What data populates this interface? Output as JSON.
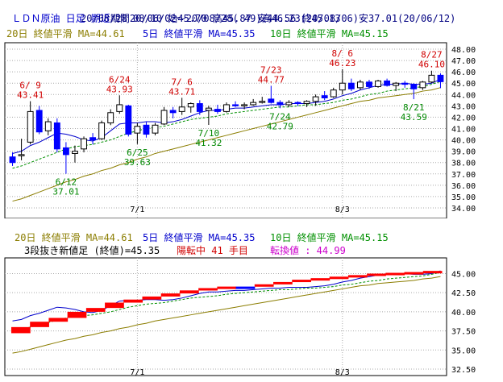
{
  "header": {
    "line1_title": "ＬＤＮ原油 日足 期近",
    "line1_period": "期間20/06/02～20/08/28( 49)高46.23(20/08/06)安37.01(20/06/12)",
    "line2": "20/08/28 08/10 始45.70 高45.87 安44.56 終45.13"
  },
  "legend": {
    "ma20": "20日 終値平滑 MA=44.61",
    "ma5": "5日 終値平滑 MA=45.35",
    "ma10": "10日 終値平滑 MA=45.15"
  },
  "lower_info": {
    "main": "3段抜き新値足 (終値)=45.35",
    "status": "陽転中  41 手目",
    "switch": "転換値 : 44.99"
  },
  "colors": {
    "up": "#000000",
    "down": "#0000ff",
    "ma20": "#8b7d00",
    "ma5": "#0000cc",
    "ma10": "#009000",
    "high_label": "#d00000",
    "low_label": "#008800",
    "brick_up": "#ff0000",
    "brick_down": "#0000ff",
    "switch": "#cc00cc",
    "grid": "#aaaaaa"
  },
  "chart_data": [
    {
      "type": "candlestick",
      "x_ticks": [
        "7/1",
        "8/3"
      ],
      "y_ticks": [
        "34.00",
        "35.00",
        "36.00",
        "37.00",
        "38.00",
        "39.00",
        "40.00",
        "41.00",
        "42.00",
        "43.00",
        "44.00",
        "45.00",
        "46.00",
        "47.00",
        "48.00"
      ],
      "ylim": [
        34,
        48
      ],
      "candles": [
        {
          "o": 38.5,
          "h": 38.9,
          "l": 37.7,
          "c": 38.0
        },
        {
          "o": 38.6,
          "h": 40.1,
          "l": 38.2,
          "c": 38.7
        },
        {
          "o": 39.8,
          "h": 43.41,
          "l": 39.6,
          "c": 42.5
        },
        {
          "o": 42.6,
          "h": 43.0,
          "l": 40.5,
          "c": 40.7
        },
        {
          "o": 40.8,
          "h": 41.9,
          "l": 40.4,
          "c": 41.6
        },
        {
          "o": 41.5,
          "h": 41.9,
          "l": 38.9,
          "c": 39.2
        },
        {
          "o": 39.3,
          "h": 39.8,
          "l": 37.01,
          "c": 38.7
        },
        {
          "o": 38.8,
          "h": 39.5,
          "l": 38.0,
          "c": 39.0
        },
        {
          "o": 39.2,
          "h": 40.3,
          "l": 38.9,
          "c": 40.1
        },
        {
          "o": 40.2,
          "h": 40.6,
          "l": 39.6,
          "c": 40.0
        },
        {
          "o": 40.1,
          "h": 41.7,
          "l": 40.0,
          "c": 41.5
        },
        {
          "o": 41.5,
          "h": 42.7,
          "l": 41.3,
          "c": 42.4
        },
        {
          "o": 42.5,
          "h": 43.93,
          "l": 42.3,
          "c": 43.1
        },
        {
          "o": 43.0,
          "h": 43.1,
          "l": 40.3,
          "c": 40.5
        },
        {
          "o": 40.6,
          "h": 41.5,
          "l": 39.63,
          "c": 41.2
        },
        {
          "o": 41.3,
          "h": 41.6,
          "l": 40.2,
          "c": 40.5
        },
        {
          "o": 40.6,
          "h": 41.5,
          "l": 40.4,
          "c": 41.3
        },
        {
          "o": 41.4,
          "h": 42.9,
          "l": 41.3,
          "c": 42.6
        },
        {
          "o": 42.6,
          "h": 42.9,
          "l": 41.9,
          "c": 42.4
        },
        {
          "o": 42.5,
          "h": 43.71,
          "l": 42.2,
          "c": 42.9
        },
        {
          "o": 42.9,
          "h": 43.3,
          "l": 42.4,
          "c": 43.2
        },
        {
          "o": 43.2,
          "h": 43.5,
          "l": 42.2,
          "c": 42.5
        },
        {
          "o": 42.6,
          "h": 43.0,
          "l": 41.32,
          "c": 42.8
        },
        {
          "o": 42.7,
          "h": 43.1,
          "l": 42.3,
          "c": 42.5
        },
        {
          "o": 42.5,
          "h": 43.3,
          "l": 42.4,
          "c": 43.1
        },
        {
          "o": 43.1,
          "h": 43.4,
          "l": 42.9,
          "c": 43.0
        },
        {
          "o": 43.0,
          "h": 43.3,
          "l": 42.7,
          "c": 43.1
        },
        {
          "o": 43.1,
          "h": 43.6,
          "l": 43.0,
          "c": 43.3
        },
        {
          "o": 43.3,
          "h": 43.8,
          "l": 43.2,
          "c": 43.4
        },
        {
          "o": 43.6,
          "h": 44.77,
          "l": 43.2,
          "c": 43.3
        },
        {
          "o": 43.3,
          "h": 43.5,
          "l": 42.79,
          "c": 43.1
        },
        {
          "o": 43.1,
          "h": 43.5,
          "l": 42.9,
          "c": 43.3
        },
        {
          "o": 43.3,
          "h": 43.4,
          "l": 43.0,
          "c": 43.2
        },
        {
          "o": 43.2,
          "h": 43.5,
          "l": 42.9,
          "c": 43.4
        },
        {
          "o": 43.4,
          "h": 44.0,
          "l": 43.0,
          "c": 43.8
        },
        {
          "o": 43.9,
          "h": 44.3,
          "l": 43.5,
          "c": 43.7
        },
        {
          "o": 43.8,
          "h": 44.6,
          "l": 43.7,
          "c": 44.4
        },
        {
          "o": 44.4,
          "h": 46.23,
          "l": 44.0,
          "c": 45.0
        },
        {
          "o": 45.0,
          "h": 45.4,
          "l": 44.3,
          "c": 44.5
        },
        {
          "o": 44.6,
          "h": 45.3,
          "l": 44.4,
          "c": 45.1
        },
        {
          "o": 45.1,
          "h": 45.3,
          "l": 44.5,
          "c": 44.7
        },
        {
          "o": 44.7,
          "h": 45.3,
          "l": 44.6,
          "c": 45.2
        },
        {
          "o": 45.2,
          "h": 45.4,
          "l": 44.7,
          "c": 44.8
        },
        {
          "o": 44.8,
          "h": 45.1,
          "l": 44.3,
          "c": 45.0
        },
        {
          "o": 45.0,
          "h": 45.2,
          "l": 44.6,
          "c": 44.9
        },
        {
          "o": 44.9,
          "h": 45.0,
          "l": 43.59,
          "c": 44.5
        },
        {
          "o": 44.6,
          "h": 45.2,
          "l": 44.4,
          "c": 45.1
        },
        {
          "o": 45.1,
          "h": 46.1,
          "l": 45.0,
          "c": 45.7
        },
        {
          "o": 45.7,
          "h": 45.87,
          "l": 44.56,
          "c": 45.13
        }
      ],
      "ma5": [
        38.8,
        39.0,
        39.5,
        39.8,
        40.2,
        40.6,
        40.5,
        40.3,
        40.0,
        39.9,
        40.2,
        40.8,
        41.4,
        41.5,
        41.5,
        41.6,
        41.6,
        41.5,
        41.6,
        41.8,
        42.1,
        42.4,
        42.6,
        42.6,
        42.7,
        42.8,
        42.8,
        42.9,
        43.0,
        43.1,
        43.1,
        43.2,
        43.2,
        43.2,
        43.3,
        43.4,
        43.6,
        43.9,
        44.1,
        44.4,
        44.6,
        44.8,
        44.9,
        44.9,
        45.0,
        44.9,
        44.9,
        45.0,
        45.35
      ],
      "ma10": [
        37.5,
        37.7,
        38.0,
        38.3,
        38.6,
        38.9,
        39.2,
        39.4,
        39.5,
        39.6,
        39.8,
        40.0,
        40.3,
        40.6,
        40.8,
        41.0,
        41.1,
        41.2,
        41.4,
        41.6,
        41.8,
        41.9,
        42.0,
        42.1,
        42.3,
        42.4,
        42.5,
        42.6,
        42.7,
        42.8,
        42.9,
        42.9,
        43.0,
        43.1,
        43.1,
        43.2,
        43.3,
        43.5,
        43.6,
        43.8,
        44.0,
        44.1,
        44.3,
        44.4,
        44.5,
        44.6,
        44.7,
        44.9,
        45.15
      ],
      "ma20": [
        34.6,
        34.8,
        35.1,
        35.4,
        35.7,
        36.0,
        36.3,
        36.5,
        36.8,
        37.0,
        37.3,
        37.5,
        37.8,
        38.0,
        38.3,
        38.5,
        38.8,
        39.0,
        39.2,
        39.4,
        39.6,
        39.8,
        40.0,
        40.2,
        40.4,
        40.6,
        40.8,
        41.0,
        41.2,
        41.4,
        41.6,
        41.8,
        42.0,
        42.2,
        42.4,
        42.6,
        42.8,
        43.0,
        43.2,
        43.4,
        43.5,
        43.7,
        43.8,
        43.9,
        44.0,
        44.1,
        44.3,
        44.4,
        44.61
      ],
      "annotations": [
        {
          "date": "6/ 9",
          "value": "43.41",
          "i": 2,
          "kind": "high"
        },
        {
          "date": "6/12",
          "value": "37.01",
          "i": 6,
          "kind": "low"
        },
        {
          "date": "6/24",
          "value": "43.93",
          "i": 12,
          "kind": "high"
        },
        {
          "date": "6/25",
          "value": "39.63",
          "i": 14,
          "kind": "low"
        },
        {
          "date": "7/ 6",
          "value": "43.71",
          "i": 19,
          "kind": "high"
        },
        {
          "date": "7/10",
          "value": "41.32",
          "i": 22,
          "kind": "low"
        },
        {
          "date": "7/23",
          "value": "44.77",
          "i": 29,
          "kind": "high"
        },
        {
          "date": "7/24",
          "value": "42.79",
          "i": 30,
          "kind": "low"
        },
        {
          "date": "8/ 6",
          "value": "46.23",
          "i": 37,
          "kind": "high"
        },
        {
          "date": "8/21",
          "value": "43.59",
          "i": 45,
          "kind": "low"
        },
        {
          "date": "8/27",
          "value": "46.10",
          "i": 47,
          "kind": "high"
        }
      ]
    },
    {
      "type": "new-price-bricks",
      "x_ticks": [
        "7/1",
        "8/3"
      ],
      "y_ticks": [
        "32.50",
        "35.00",
        "37.50",
        "40.00",
        "42.50",
        "45.00"
      ],
      "ylim": [
        32.5,
        46
      ],
      "bricks": [
        {
          "lo": 37.2,
          "hi": 38.0,
          "dir": "up"
        },
        {
          "lo": 38.0,
          "hi": 38.7,
          "dir": "up"
        },
        {
          "lo": 38.7,
          "hi": 39.2,
          "dir": "up"
        },
        {
          "lo": 39.2,
          "hi": 40.0,
          "dir": "up"
        },
        {
          "lo": 40.0,
          "hi": 40.5,
          "dir": "up"
        },
        {
          "lo": 40.5,
          "hi": 41.2,
          "dir": "up"
        },
        {
          "lo": 41.2,
          "hi": 41.6,
          "dir": "up"
        },
        {
          "lo": 41.6,
          "hi": 42.0,
          "dir": "up"
        },
        {
          "lo": 42.0,
          "hi": 42.4,
          "dir": "up"
        },
        {
          "lo": 42.4,
          "hi": 42.8,
          "dir": "up"
        },
        {
          "lo": 42.8,
          "hi": 43.1,
          "dir": "up"
        },
        {
          "lo": 43.1,
          "hi": 43.3,
          "dir": "up"
        },
        {
          "lo": 43.0,
          "hi": 43.3,
          "dir": "down"
        },
        {
          "lo": 43.3,
          "hi": 43.6,
          "dir": "up"
        },
        {
          "lo": 43.6,
          "hi": 43.9,
          "dir": "up"
        },
        {
          "lo": 43.9,
          "hi": 44.2,
          "dir": "up"
        },
        {
          "lo": 44.2,
          "hi": 44.4,
          "dir": "up"
        },
        {
          "lo": 44.4,
          "hi": 44.6,
          "dir": "up"
        },
        {
          "lo": 44.6,
          "hi": 44.8,
          "dir": "up"
        },
        {
          "lo": 44.8,
          "hi": 45.0,
          "dir": "up"
        },
        {
          "lo": 45.0,
          "hi": 45.1,
          "dir": "up"
        },
        {
          "lo": 45.1,
          "hi": 45.2,
          "dir": "up"
        },
        {
          "lo": 45.2,
          "hi": 45.35,
          "dir": "up"
        }
      ],
      "switch_value": 44.99
    }
  ]
}
